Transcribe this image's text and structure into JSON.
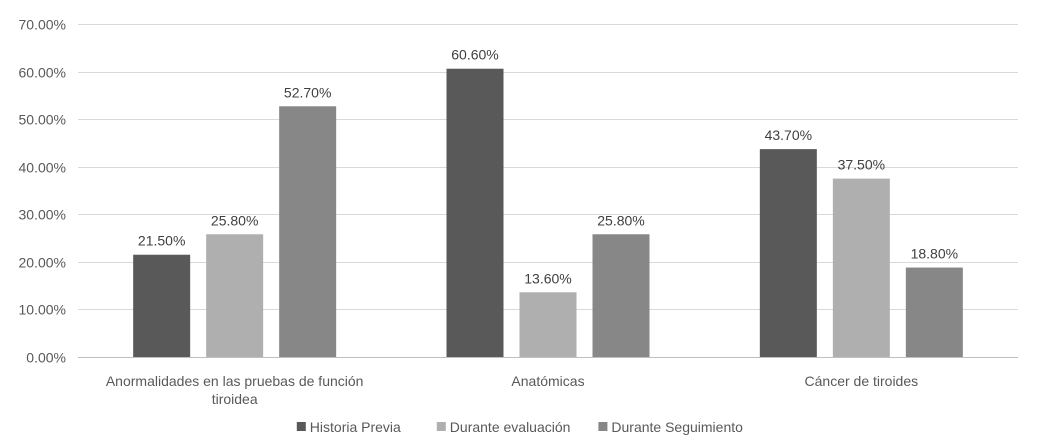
{
  "chart_data": {
    "type": "bar",
    "title": "",
    "xlabel": "",
    "ylabel": "",
    "ylim": [
      0,
      70
    ],
    "y_ticks": [
      0,
      10,
      20,
      30,
      40,
      50,
      60,
      70
    ],
    "y_tick_format": "percent-2dp",
    "grid": true,
    "legend_position": "bottom-center",
    "categories": [
      [
        "Anormalidades en las pruebas de función",
        "tiroidea"
      ],
      [
        "Anatómicas"
      ],
      [
        "Cáncer de tiroides"
      ]
    ],
    "series": [
      {
        "name": "Historia Previa",
        "color": "#595959",
        "values": [
          21.5,
          60.6,
          43.7
        ],
        "labels": [
          "21.50%",
          "60.60%",
          "43.70%"
        ]
      },
      {
        "name": "Durante evaluación",
        "color": "#afafaf",
        "values": [
          25.8,
          13.6,
          37.5
        ],
        "labels": [
          "25.80%",
          "13.60%",
          "37.50%"
        ]
      },
      {
        "name": "Durante Seguimiento",
        "color": "#878787",
        "values": [
          52.7,
          25.8,
          18.8
        ],
        "labels": [
          "52.70%",
          "25.80%",
          "18.80%"
        ]
      }
    ]
  }
}
